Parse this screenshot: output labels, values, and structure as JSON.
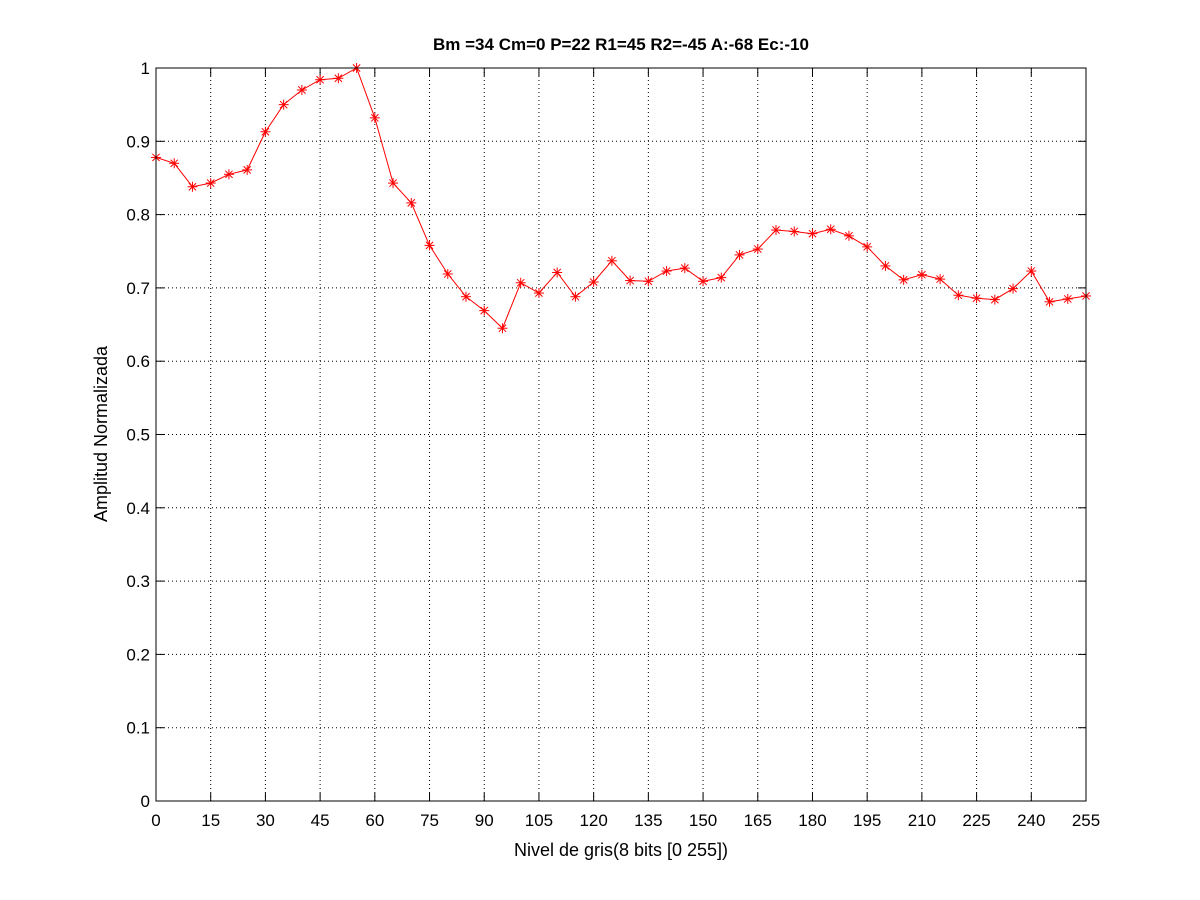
{
  "chart_data": {
    "type": "line",
    "title": "Bm =34  Cm=0  P=22  R1=45  R2=-45  A:-68  Ec:-10",
    "xlabel": "Nivel de gris(8 bits [0 255])",
    "ylabel": "Amplitud Normalizada",
    "xlim": [
      0,
      255
    ],
    "ylim": [
      0,
      1
    ],
    "xticks": [
      0,
      15,
      30,
      45,
      60,
      75,
      90,
      105,
      120,
      135,
      150,
      165,
      180,
      195,
      210,
      225,
      240,
      255
    ],
    "xtick_labels": [
      "0",
      "15",
      "30",
      "45",
      "60",
      "75",
      "90",
      "105",
      "120",
      "135",
      "150",
      "165",
      "180",
      "195",
      "210",
      "225",
      "240",
      "255"
    ],
    "yticks": [
      0,
      0.1,
      0.2,
      0.3,
      0.4,
      0.5,
      0.6,
      0.7,
      0.8,
      0.9,
      1
    ],
    "ytick_labels": [
      "0",
      "0.1",
      "0.2",
      "0.3",
      "0.4",
      "0.5",
      "0.6",
      "0.7",
      "0.8",
      "0.9",
      "1"
    ],
    "grid": true,
    "grid_style": "dotted",
    "series": [
      {
        "color": "#ff0000",
        "marker": "asterisk",
        "x": [
          0,
          5,
          10,
          15,
          20,
          25,
          30,
          35,
          40,
          45,
          50,
          55,
          60,
          65,
          70,
          75,
          80,
          85,
          90,
          95,
          100,
          105,
          110,
          115,
          120,
          125,
          130,
          135,
          140,
          145,
          150,
          155,
          160,
          165,
          170,
          175,
          180,
          185,
          190,
          195,
          200,
          205,
          210,
          215,
          220,
          225,
          230,
          235,
          240,
          245,
          250,
          255
        ],
        "values": [
          0.878,
          0.87,
          0.838,
          0.843,
          0.855,
          0.861,
          0.913,
          0.95,
          0.97,
          0.984,
          0.986,
          1.0,
          0.932,
          0.843,
          0.816,
          0.758,
          0.719,
          0.688,
          0.669,
          0.645,
          0.707,
          0.693,
          0.721,
          0.688,
          0.708,
          0.737,
          0.71,
          0.709,
          0.723,
          0.727,
          0.709,
          0.714,
          0.745,
          0.753,
          0.779,
          0.777,
          0.774,
          0.78,
          0.771,
          0.756,
          0.73,
          0.711,
          0.718,
          0.712,
          0.69,
          0.686,
          0.684,
          0.699,
          0.723,
          0.681,
          0.685,
          0.689
        ]
      }
    ]
  }
}
